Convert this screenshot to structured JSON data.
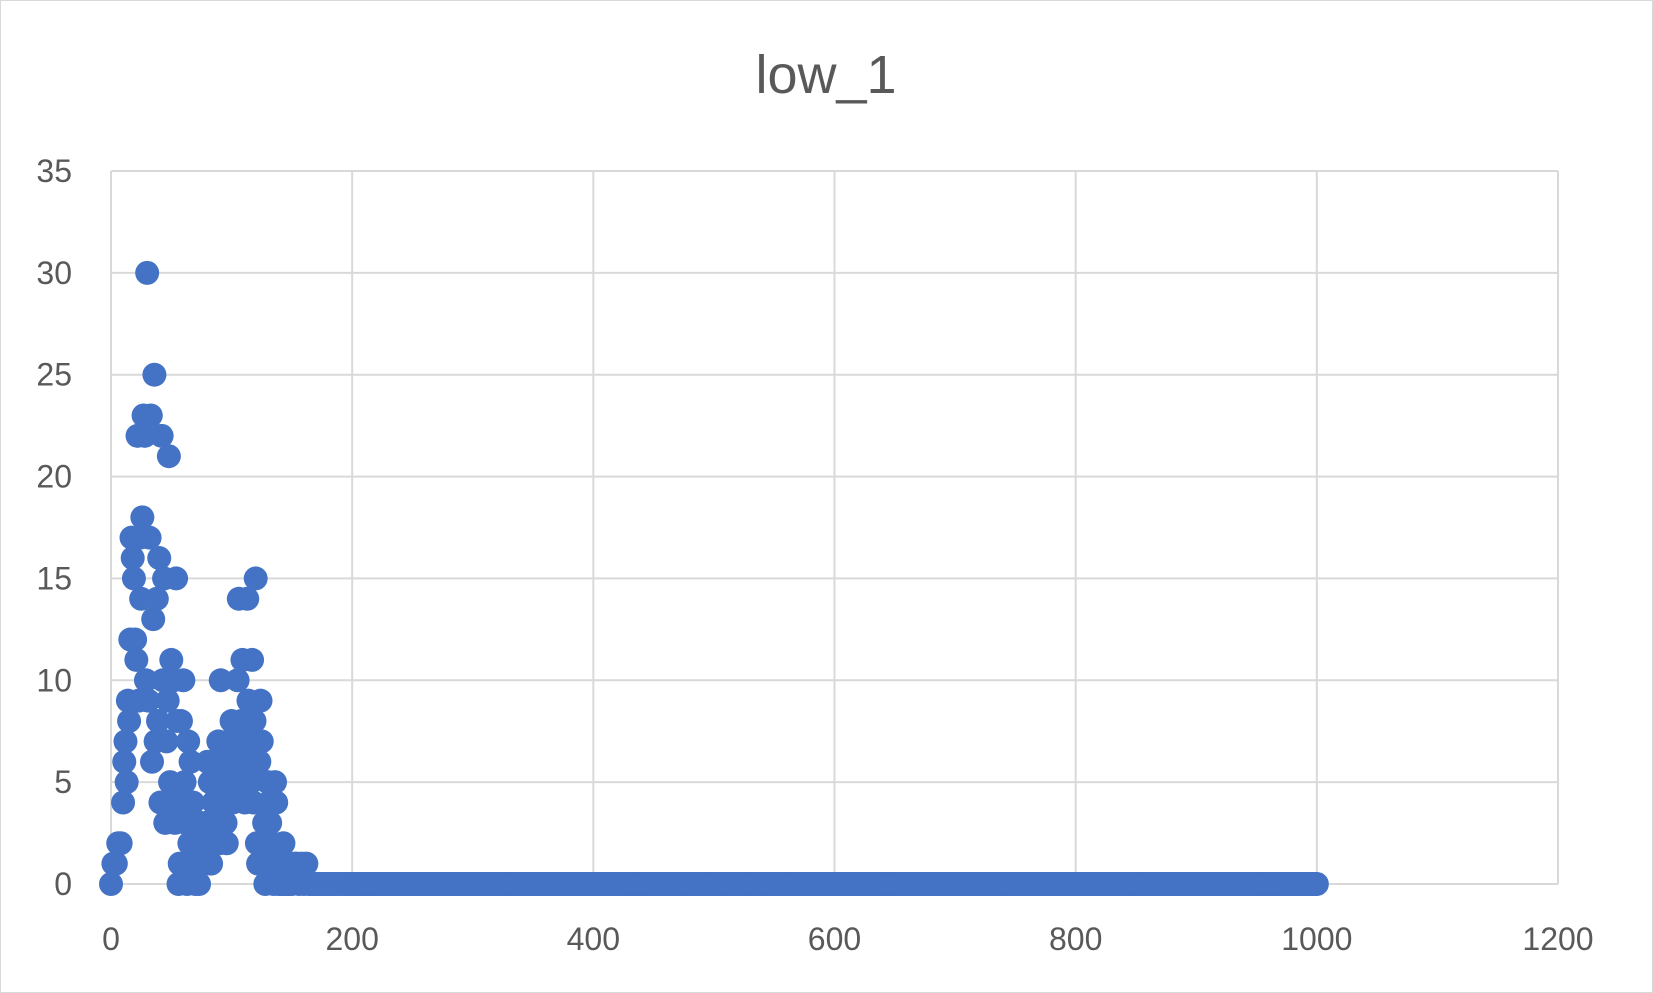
{
  "chart_data": {
    "type": "scatter",
    "title": "low_1",
    "xlabel": "",
    "ylabel": "",
    "xlim": [
      0,
      1200
    ],
    "ylim": [
      0,
      35
    ],
    "x_ticks": [
      "0",
      "200",
      "400",
      "600",
      "800",
      "1000",
      "1200"
    ],
    "y_ticks": [
      "0",
      "5",
      "10",
      "15",
      "20",
      "25",
      "30",
      "35"
    ],
    "grid": true,
    "legend": "none",
    "marker_color": "#4472c4",
    "series": [
      {
        "x": [
          0,
          2,
          4,
          6,
          8,
          10,
          11,
          12,
          13,
          14,
          15,
          16,
          17,
          18,
          19,
          20,
          21,
          22,
          23,
          24,
          25,
          26,
          27,
          28,
          29,
          30,
          31,
          32,
          33,
          34,
          35,
          36,
          37,
          38,
          39,
          40,
          41,
          42,
          43,
          44,
          45,
          46,
          47,
          48,
          49,
          50,
          51,
          52,
          53,
          54,
          55,
          56,
          57,
          58,
          59,
          60,
          61,
          62,
          63,
          64,
          65,
          66,
          67,
          68,
          69,
          70,
          71,
          72,
          73,
          74,
          75,
          76,
          77,
          78,
          79,
          80,
          81,
          82,
          83,
          84,
          85,
          86,
          87,
          88,
          89,
          90,
          91,
          92,
          93,
          94,
          95,
          96,
          97,
          98,
          99,
          100,
          101,
          102,
          103,
          104,
          105,
          106,
          107,
          108,
          109,
          110,
          111,
          112,
          113,
          114,
          115,
          116,
          117,
          118,
          119,
          120,
          121,
          122,
          123,
          124,
          125,
          126,
          127,
          128,
          129,
          130,
          131,
          132,
          133,
          134,
          135,
          136,
          137,
          138,
          139,
          140,
          141,
          142,
          143,
          144,
          145,
          146,
          147,
          148,
          150,
          152,
          154,
          156,
          158,
          160,
          162,
          164,
          166,
          168,
          170,
          172,
          174,
          176,
          178,
          180,
          182,
          184,
          186,
          188,
          190,
          192,
          194,
          196,
          198,
          200
        ],
        "y": [
          0,
          1,
          1,
          2,
          2,
          4,
          6,
          7,
          5,
          9,
          8,
          12,
          17,
          16,
          15,
          12,
          11,
          22,
          9,
          17,
          14,
          18,
          23,
          22,
          10,
          30,
          9,
          17,
          23,
          6,
          13,
          25,
          7,
          14,
          8,
          16,
          4,
          22,
          10,
          15,
          3,
          7,
          9,
          21,
          5,
          11,
          4,
          10,
          3,
          15,
          8,
          0,
          1,
          8,
          4,
          10,
          5,
          3,
          0,
          7,
          2,
          6,
          1,
          4,
          3,
          0,
          2,
          1,
          0,
          3,
          2,
          1,
          2,
          1,
          3,
          6,
          2,
          5,
          1,
          2,
          4,
          5,
          6,
          3,
          7,
          2,
          10,
          5,
          4,
          6,
          3,
          2,
          7,
          6,
          5,
          8,
          4,
          7,
          6,
          5,
          10,
          14,
          5,
          8,
          11,
          6,
          4,
          7,
          14,
          9,
          6,
          5,
          11,
          4,
          8,
          15,
          2,
          1,
          6,
          9,
          7,
          2,
          3,
          0,
          1,
          5,
          4,
          3,
          1,
          2,
          0,
          5,
          4,
          1,
          0,
          1,
          0,
          0,
          2,
          0,
          1,
          0,
          0,
          0,
          0,
          1,
          1,
          0,
          1,
          0,
          1,
          0,
          0,
          0,
          0,
          0,
          0,
          0,
          0,
          0,
          0,
          0,
          0,
          0,
          0,
          0,
          0,
          0,
          0,
          0
        ],
        "baseline_from": 200,
        "baseline_to": 1000,
        "baseline_step": 1,
        "baseline_value": 0
      }
    ]
  }
}
